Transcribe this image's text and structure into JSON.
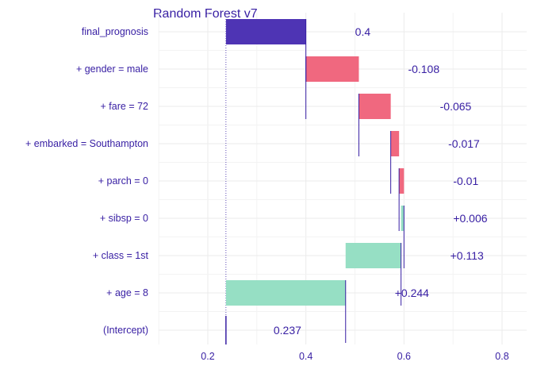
{
  "chart_data": {
    "type": "bar",
    "subtype": "break-down waterfall",
    "title": "Random Forest v7",
    "xlim": [
      0.1,
      0.85
    ],
    "x_ticks": [
      0.2,
      0.4,
      0.6,
      0.8
    ],
    "x_tick_labels": [
      "0.2",
      "0.4",
      "0.6",
      "0.8"
    ],
    "grid": true,
    "baseline": 0.237,
    "colors": {
      "prediction": "#4e34b4",
      "negative": "#f0687f",
      "positive": "#96dfc4",
      "intercept": "#371ea3",
      "text": "#371ea3"
    },
    "rows": [
      {
        "label": "final_prognosis",
        "value_label": "0.4",
        "start": 0.237,
        "end": 0.4,
        "kind": "prediction"
      },
      {
        "label": "+ gender = male",
        "value_label": "-0.108",
        "start": 0.508,
        "end": 0.4,
        "kind": "negative"
      },
      {
        "label": "+ fare = 72",
        "value_label": "-0.065",
        "start": 0.573,
        "end": 0.508,
        "kind": "negative"
      },
      {
        "label": "+ embarked = Southampton",
        "value_label": "-0.017",
        "start": 0.59,
        "end": 0.573,
        "kind": "negative"
      },
      {
        "label": "+ parch = 0",
        "value_label": "-0.01",
        "start": 0.6,
        "end": 0.59,
        "kind": "negative"
      },
      {
        "label": "+ sibsp = 0",
        "value_label": "+0.006",
        "start": 0.594,
        "end": 0.6,
        "kind": "positive"
      },
      {
        "label": "+ class = 1st",
        "value_label": "+0.113",
        "start": 0.481,
        "end": 0.594,
        "kind": "positive"
      },
      {
        "label": "+ age = 8",
        "value_label": "+0.244",
        "start": 0.237,
        "end": 0.481,
        "kind": "positive"
      },
      {
        "label": "(Intercept)",
        "value_label": "0.237",
        "start": 0.237,
        "end": 0.237,
        "kind": "intercept"
      }
    ]
  }
}
